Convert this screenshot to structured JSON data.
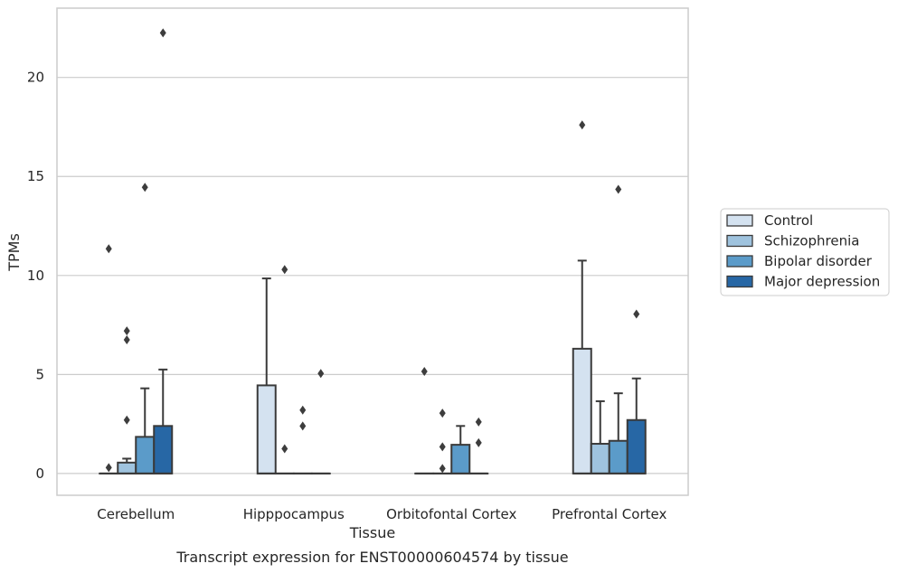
{
  "chart_data": {
    "type": "box",
    "caption": "Transcript expression for ENST00000604574 by tissue",
    "xlabel": "Tissue",
    "ylabel": "TPMs",
    "ylim": [
      -1.1,
      23.5
    ],
    "yticks": [
      0,
      5,
      10,
      15,
      20
    ],
    "grid": "horizontal",
    "legend_position": "right",
    "categories": [
      "Cerebellum",
      "Hipppocampus",
      "Orbitofontal Cortex",
      "Prefrontal Cortex"
    ],
    "series": [
      {
        "name": "Control",
        "color": "#d4e2f0",
        "boxes": [
          {
            "q1": 0,
            "median": 0,
            "q3": 0,
            "whisker_low": 0,
            "whisker_high": 0,
            "outliers": [
              0.3,
              11.35
            ]
          },
          {
            "q1": 0,
            "median": 0,
            "q3": 4.45,
            "whisker_low": 0,
            "whisker_high": 9.85,
            "outliers": []
          },
          {
            "q1": 0,
            "median": 0,
            "q3": 0,
            "whisker_low": 0,
            "whisker_high": 0,
            "outliers": [
              5.15
            ]
          },
          {
            "q1": 0,
            "median": 0,
            "q3": 6.3,
            "whisker_low": 0,
            "whisker_high": 10.75,
            "outliers": [
              17.6
            ]
          }
        ]
      },
      {
        "name": "Schizophrenia",
        "color": "#9fc3de",
        "boxes": [
          {
            "q1": 0,
            "median": 0,
            "q3": 0.55,
            "whisker_low": 0,
            "whisker_high": 0.75,
            "outliers": [
              2.7,
              6.75,
              7.2
            ]
          },
          {
            "q1": 0,
            "median": 0,
            "q3": 0,
            "whisker_low": 0,
            "whisker_high": 0,
            "outliers": [
              1.25,
              10.3
            ]
          },
          {
            "q1": 0,
            "median": 0,
            "q3": 0,
            "whisker_low": 0,
            "whisker_high": 0,
            "outliers": [
              0.25,
              1.35,
              3.05
            ]
          },
          {
            "q1": 0,
            "median": 0,
            "q3": 1.5,
            "whisker_low": 0,
            "whisker_high": 3.65,
            "outliers": []
          }
        ]
      },
      {
        "name": "Bipolar disorder",
        "color": "#5b9bc9",
        "boxes": [
          {
            "q1": 0,
            "median": 0,
            "q3": 1.85,
            "whisker_low": 0,
            "whisker_high": 4.3,
            "outliers": [
              14.45
            ]
          },
          {
            "q1": 0,
            "median": 0,
            "q3": 0,
            "whisker_low": 0,
            "whisker_high": 0,
            "outliers": [
              2.4,
              3.2
            ]
          },
          {
            "q1": 0,
            "median": 0,
            "q3": 1.45,
            "whisker_low": 0,
            "whisker_high": 2.4,
            "outliers": []
          },
          {
            "q1": 0,
            "median": 0,
            "q3": 1.65,
            "whisker_low": 0,
            "whisker_high": 4.05,
            "outliers": [
              14.35
            ]
          }
        ]
      },
      {
        "name": "Major depression",
        "color": "#2767a5",
        "boxes": [
          {
            "q1": 0,
            "median": 0,
            "q3": 2.4,
            "whisker_low": 0,
            "whisker_high": 5.25,
            "outliers": [
              22.25
            ]
          },
          {
            "q1": 0,
            "median": 0,
            "q3": 0,
            "whisker_low": 0,
            "whisker_high": 0,
            "outliers": [
              5.05
            ]
          },
          {
            "q1": 0,
            "median": 0,
            "q3": 0,
            "whisker_low": 0,
            "whisker_high": 0,
            "outliers": [
              1.55,
              2.6
            ]
          },
          {
            "q1": 0,
            "median": 0,
            "q3": 2.7,
            "whisker_low": 0,
            "whisker_high": 4.8,
            "outliers": [
              8.05
            ]
          }
        ]
      }
    ]
  }
}
